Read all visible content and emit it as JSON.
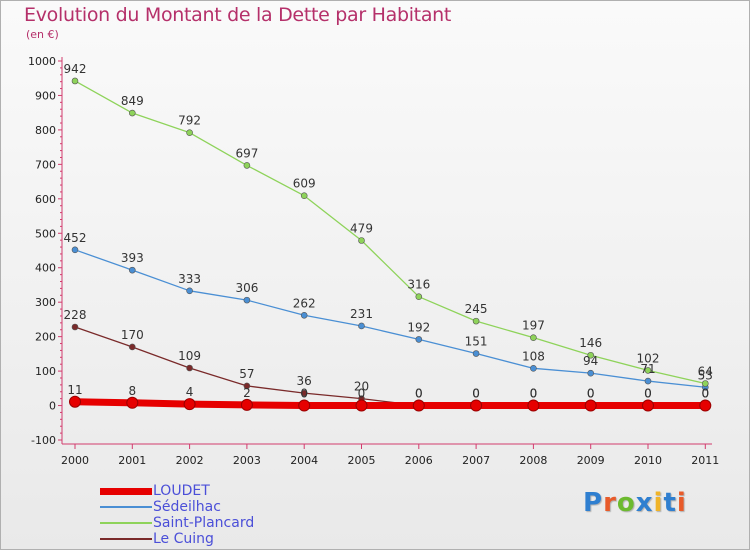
{
  "page": {
    "title": "Evolution du Montant de la Dette par Habitant",
    "subtitle": "(en €)",
    "logo_text": "Proxiti",
    "logo_colors": [
      "#2f7fd0",
      "#e85b2a",
      "#6cba2f",
      "#2f7fd0",
      "#f0b429",
      "#2f7fd0",
      "#e85b2a"
    ]
  },
  "chart_data": {
    "type": "line",
    "title": "Evolution du Montant de la Dette par Habitant",
    "subtitle": "(en €)",
    "xlabel": "",
    "ylabel": "",
    "categories": [
      "2000",
      "2001",
      "2002",
      "2003",
      "2004",
      "2005",
      "2006",
      "2007",
      "2008",
      "2009",
      "2010",
      "2011"
    ],
    "ylim": [
      -100,
      1000
    ],
    "yticks": [
      -100,
      0,
      100,
      200,
      300,
      400,
      500,
      600,
      700,
      800,
      900,
      1000
    ],
    "grid": false,
    "legend_position": "bottom-left",
    "series": [
      {
        "name": "LOUDET",
        "color": "#e60000",
        "values": [
          11,
          8,
          4,
          2,
          0,
          0,
          0,
          0,
          0,
          0,
          0,
          0
        ],
        "labels": [
          "11",
          "8",
          "4",
          "2",
          "0",
          "0",
          "0",
          "0",
          "0",
          "0",
          "0",
          "0"
        ]
      },
      {
        "name": "Sédeilhac",
        "color": "#4a8fd4",
        "values": [
          452,
          393,
          333,
          306,
          262,
          231,
          192,
          151,
          108,
          94,
          71,
          53
        ],
        "labels": [
          "452",
          "393",
          "333",
          "306",
          "262",
          "231",
          "192",
          "151",
          "108",
          "94",
          "71",
          "53"
        ]
      },
      {
        "name": "Saint-Plancard",
        "color": "#8ed35a",
        "values": [
          942,
          849,
          792,
          697,
          609,
          479,
          316,
          245,
          197,
          146,
          102,
          64
        ],
        "labels": [
          "942",
          "849",
          "792",
          "697",
          "609",
          "479",
          "316",
          "245",
          "197",
          "146",
          "102",
          "64"
        ]
      },
      {
        "name": "Le Cuing",
        "color": "#7a2a2a",
        "values": [
          228,
          170,
          109,
          57,
          36,
          20,
          0,
          0,
          0,
          0,
          0,
          0
        ],
        "labels": [
          "228",
          "170",
          "109",
          "57",
          "36",
          "20",
          "0",
          "0",
          "0",
          "0",
          "0",
          "0"
        ]
      }
    ]
  }
}
